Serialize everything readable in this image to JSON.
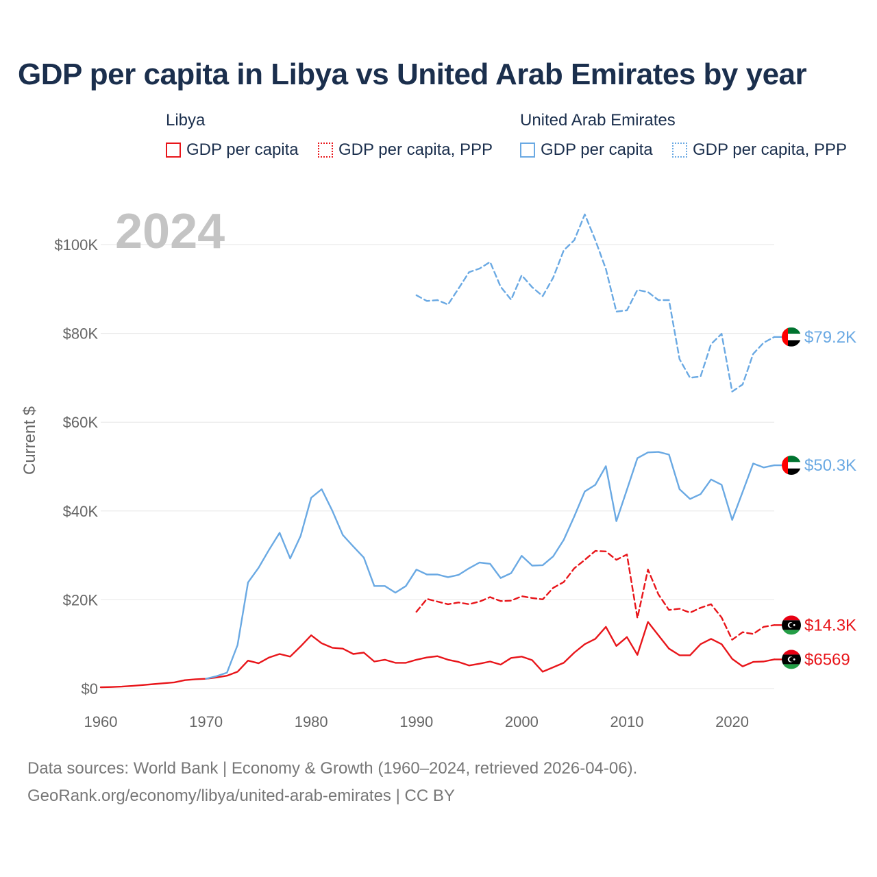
{
  "colors": {
    "libya": "#e8151a",
    "uae": "#6aa9e3",
    "title": "#1b2f4d",
    "axis_text": "#666666",
    "grid": "#e6e6e6",
    "year_watermark": "#c4c4c4"
  },
  "legend": {
    "libya": {
      "title": "Libya",
      "items": [
        "GDP per capita",
        "GDP per capita, PPP"
      ]
    },
    "uae": {
      "title": "United Arab Emirates",
      "items": [
        "GDP per capita",
        "GDP per capita, PPP"
      ]
    }
  },
  "footer": {
    "sources": "Data sources: World Bank | Economy & Growth (1960–2024, retrieved 2026-04-06).",
    "link": "GeoRank.org/economy/libya/united-arab-emirates | CC BY"
  },
  "chart_data": {
    "type": "line",
    "title": "GDP per capita in Libya vs United Arab Emirates by year",
    "year_label": "2024",
    "ylabel": "Current $",
    "xlabel": "",
    "xlim": [
      1960,
      2024
    ],
    "ylim": [
      0,
      110000
    ],
    "x_ticks": [
      1960,
      1970,
      1980,
      1990,
      2000,
      2010,
      2020
    ],
    "y_ticks": [
      {
        "value": 0,
        "label": "$0"
      },
      {
        "value": 20000,
        "label": "$20K"
      },
      {
        "value": 40000,
        "label": "$40K"
      },
      {
        "value": 60000,
        "label": "$60K"
      },
      {
        "value": 80000,
        "label": "$80K"
      },
      {
        "value": 100000,
        "label": "$100K"
      }
    ],
    "grid": true,
    "series": [
      {
        "name": "Libya GDP per capita",
        "country": "libya",
        "style": "solid",
        "end_label": "$6569",
        "start_year": 1960,
        "values": [
          300,
          350,
          450,
          600,
          800,
          1000,
          1200,
          1400,
          1900,
          2100,
          2200,
          2500,
          2900,
          3800,
          6300,
          5700,
          7000,
          7800,
          7200,
          9500,
          12000,
          10200,
          9200,
          9000,
          7800,
          8100,
          6100,
          6500,
          5800,
          5800,
          6500,
          7000,
          7300,
          6500,
          6000,
          5200,
          5600,
          6100,
          5400,
          6900,
          7200,
          6400,
          3800,
          4800,
          5800,
          8100,
          10000,
          11200,
          13900,
          9600,
          11600,
          7600,
          15000,
          12000,
          9000,
          7500,
          7500,
          10000,
          11200,
          10000,
          6700,
          5000,
          6000,
          6100,
          6569
        ]
      },
      {
        "name": "Libya GDP per capita, PPP",
        "country": "libya",
        "style": "dashed",
        "end_label": "$14.3K",
        "start_year": 1990,
        "values": [
          17300,
          20200,
          19600,
          19000,
          19400,
          19000,
          19600,
          20600,
          19700,
          19800,
          20800,
          20400,
          20100,
          22700,
          24000,
          27100,
          29000,
          31000,
          30900,
          29000,
          30200,
          15900,
          26800,
          21200,
          17700,
          18000,
          17100,
          18200,
          19000,
          16000,
          11000,
          12700,
          12300,
          13900,
          14300
        ]
      },
      {
        "name": "United Arab Emirates GDP per capita",
        "country": "uae",
        "style": "solid",
        "end_label": "$50.3K",
        "start_year": 1970,
        "values": [
          2200,
          2800,
          3600,
          9800,
          23900,
          27200,
          31300,
          35100,
          29300,
          34400,
          43000,
          44900,
          40100,
          34600,
          32000,
          29500,
          23100,
          23100,
          21600,
          23100,
          26800,
          25700,
          25700,
          25100,
          25600,
          27100,
          28400,
          28100,
          24900,
          26000,
          29900,
          27700,
          27800,
          29800,
          33500,
          38800,
          44400,
          45900,
          50100,
          37700,
          44800,
          51900,
          53200,
          53300,
          52700,
          44900,
          42700,
          43800,
          47100,
          45900,
          38000,
          44300,
          50700,
          49800,
          50300
        ]
      },
      {
        "name": "United Arab Emirates GDP per capita, PPP",
        "country": "uae",
        "style": "dashed",
        "end_label": "$79.2K",
        "start_year": 1990,
        "values": [
          88600,
          87300,
          87500,
          86500,
          90100,
          93800,
          94600,
          96100,
          90500,
          87600,
          93100,
          90400,
          88400,
          92600,
          98700,
          101000,
          106800,
          101000,
          94500,
          84900,
          85200,
          89800,
          89300,
          87500,
          87500,
          74200,
          70000,
          70300,
          77600,
          79900,
          66900,
          68500,
          75400,
          77900,
          79200
        ]
      }
    ]
  }
}
